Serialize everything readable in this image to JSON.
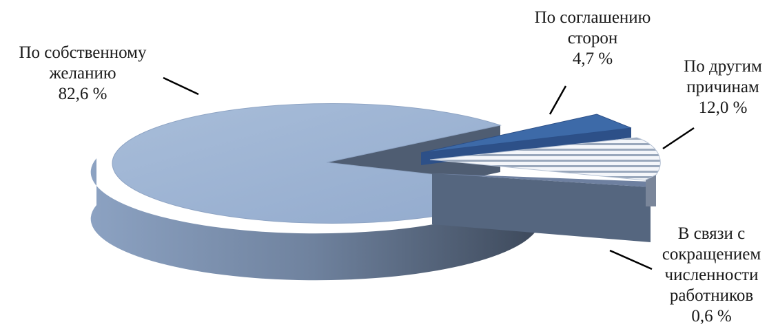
{
  "chart_data": {
    "type": "pie",
    "title": "",
    "slices": [
      {
        "label_lines": [
          "По собственному",
          "желанию"
        ],
        "value_label": "82,6 %",
        "value": 82.6,
        "color": "#9db4d4"
      },
      {
        "label_lines": [
          "По соглашению",
          "сторон"
        ],
        "value_label": "4,7 %",
        "value": 4.7,
        "color": "#3d6aa8"
      },
      {
        "label_lines": [
          "По другим",
          "причинам"
        ],
        "value_label": "12,0 %",
        "value": 12.0,
        "color": "#eef2f7"
      },
      {
        "label_lines": [
          "В связи с",
          "сокращением",
          "численности",
          "работников"
        ],
        "value_label": "0,6 %",
        "value": 0.6,
        "color": "#5b6d86"
      }
    ],
    "legend": "none",
    "style": "3d-exploded"
  }
}
